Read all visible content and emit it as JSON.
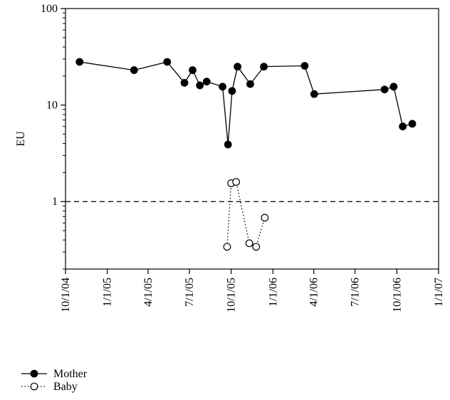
{
  "chart_data": {
    "type": "line",
    "ylabel": "EU",
    "xlabel": "",
    "y_scale": "log",
    "ylim": [
      0.2,
      100
    ],
    "y_ticks": [
      {
        "value": 1,
        "label": "1"
      },
      {
        "value": 10,
        "label": "10"
      },
      {
        "value": 100,
        "label": "100"
      }
    ],
    "xlim": [
      "2004-10-01",
      "2007-01-01"
    ],
    "x_ticks": [
      {
        "value": "2004-10-01",
        "label": "10/1/04"
      },
      {
        "value": "2005-01-01",
        "label": "1/1/05"
      },
      {
        "value": "2005-04-01",
        "label": "4/1/05"
      },
      {
        "value": "2005-07-01",
        "label": "7/1/05"
      },
      {
        "value": "2005-10-01",
        "label": "10/1/05"
      },
      {
        "value": "2006-01-01",
        "label": "1/1/06"
      },
      {
        "value": "2006-04-01",
        "label": "4/1/06"
      },
      {
        "value": "2006-07-01",
        "label": "7/1/06"
      },
      {
        "value": "2006-10-01",
        "label": "10/1/06"
      },
      {
        "value": "2007-01-01",
        "label": "1/1/07"
      }
    ],
    "reference_line": {
      "value": 1,
      "style": "dashed"
    },
    "grid": false,
    "legend_position": "bottom-left",
    "series": [
      {
        "name": "Mother",
        "marker": "filled-circle",
        "line": "solid",
        "color": "#000000",
        "points": [
          {
            "x": "2004-11-01",
            "y": 28
          },
          {
            "x": "2005-03-01",
            "y": 23
          },
          {
            "x": "2005-05-13",
            "y": 28
          },
          {
            "x": "2005-06-20",
            "y": 17
          },
          {
            "x": "2005-07-08",
            "y": 23
          },
          {
            "x": "2005-07-24",
            "y": 16
          },
          {
            "x": "2005-08-08",
            "y": 17.5
          },
          {
            "x": "2005-09-12",
            "y": 15.5
          },
          {
            "x": "2005-09-24",
            "y": 3.9
          },
          {
            "x": "2005-10-03",
            "y": 14
          },
          {
            "x": "2005-10-15",
            "y": 25
          },
          {
            "x": "2005-11-12",
            "y": 16.5
          },
          {
            "x": "2005-12-12",
            "y": 25
          },
          {
            "x": "2006-03-12",
            "y": 25.5
          },
          {
            "x": "2006-04-02",
            "y": 13
          },
          {
            "x": "2006-09-04",
            "y": 14.5
          },
          {
            "x": "2006-09-24",
            "y": 15.5
          },
          {
            "x": "2006-10-14",
            "y": 6
          },
          {
            "x": "2006-11-04",
            "y": 6.4
          }
        ]
      },
      {
        "name": "Baby",
        "marker": "open-circle",
        "line": "dotted",
        "color": "#000000",
        "points": [
          {
            "x": "2005-09-22",
            "y": 0.34
          },
          {
            "x": "2005-10-01",
            "y": 1.55
          },
          {
            "x": "2005-10-12",
            "y": 1.6
          },
          {
            "x": "2005-11-10",
            "y": 0.37
          },
          {
            "x": "2005-11-25",
            "y": 0.34
          },
          {
            "x": "2005-12-14",
            "y": 0.68
          }
        ]
      }
    ]
  }
}
